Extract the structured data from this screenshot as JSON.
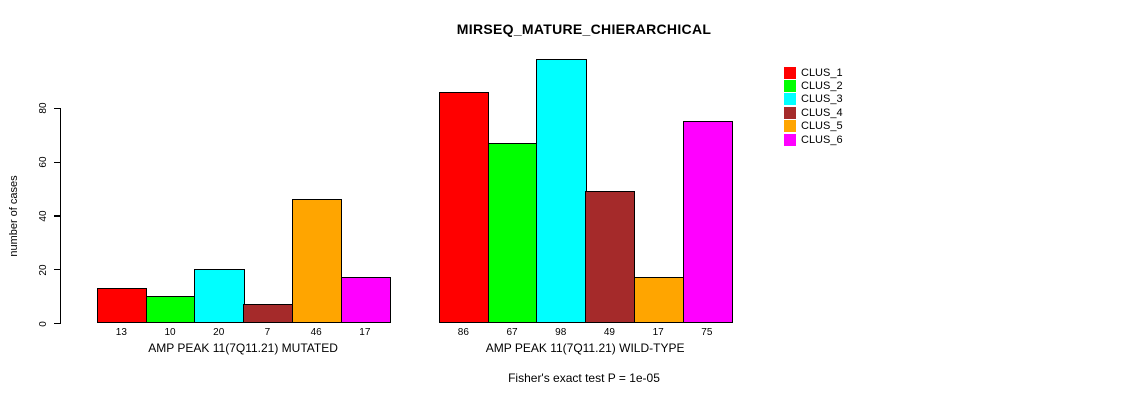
{
  "chart_data": {
    "type": "bar",
    "title": "MIRSEQ_MATURE_CHIERARCHICAL",
    "ylabel": "number of cases",
    "xlabel": "",
    "annotation": "Fisher's exact test P = 1e-05",
    "categories": [
      "AMP PEAK 11(7Q11.21) MUTATED",
      "AMP PEAK 11(7Q11.21) WILD-TYPE"
    ],
    "series": [
      {
        "name": "CLUS_1",
        "color": "#FF0000",
        "values": [
          13,
          86
        ]
      },
      {
        "name": "CLUS_2",
        "color": "#00FF00",
        "values": [
          10,
          67
        ]
      },
      {
        "name": "CLUS_3",
        "color": "#00FFFF",
        "values": [
          20,
          98
        ]
      },
      {
        "name": "CLUS_4",
        "color": "#A52A2A",
        "values": [
          7,
          49
        ]
      },
      {
        "name": "CLUS_5",
        "color": "#FFA500",
        "values": [
          46,
          17
        ]
      },
      {
        "name": "CLUS_6",
        "color": "#FF00FF",
        "values": [
          17,
          75
        ]
      }
    ],
    "yticks": [
      0,
      20,
      40,
      60,
      80
    ],
    "ylim": [
      0,
      98
    ],
    "bar_value_labels": true,
    "legend_position": "right",
    "grid": false
  }
}
